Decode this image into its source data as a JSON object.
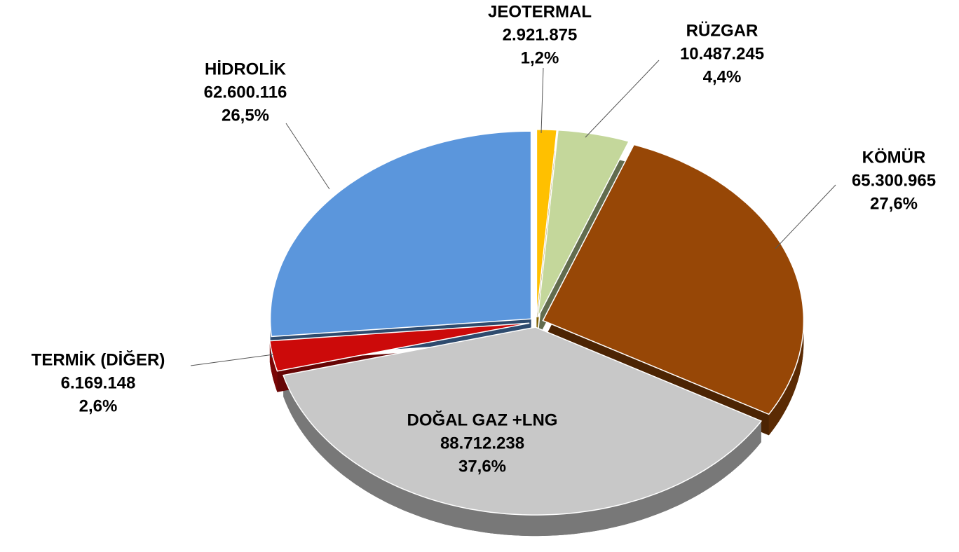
{
  "chart_data": {
    "type": "pie3d",
    "categories": [
      "JEOTERMAL",
      "RÜZGAR",
      "KÖMÜR",
      "DOĞAL GAZ +LNG",
      "TERMİK (DİĞER)",
      "HİDROLİK"
    ],
    "values": [
      2921875,
      10487245,
      65300965,
      88712238,
      6169148,
      62600116
    ],
    "value_labels": [
      "2.921.875",
      "10.487.245",
      "65.300.965",
      "88.712.238",
      "6.169.148",
      "62.600.116"
    ],
    "percents": [
      1.2,
      4.4,
      27.6,
      37.6,
      2.6,
      26.5
    ],
    "percent_labels": [
      "1,2%",
      "4,4%",
      "27,6%",
      "37,6%",
      "2,6%",
      "26,5%"
    ],
    "colors": [
      "#ffc000",
      "#c4d79b",
      "#974706",
      "#c8c8c8",
      "#cc0a0a",
      "#5b96dc"
    ]
  }
}
